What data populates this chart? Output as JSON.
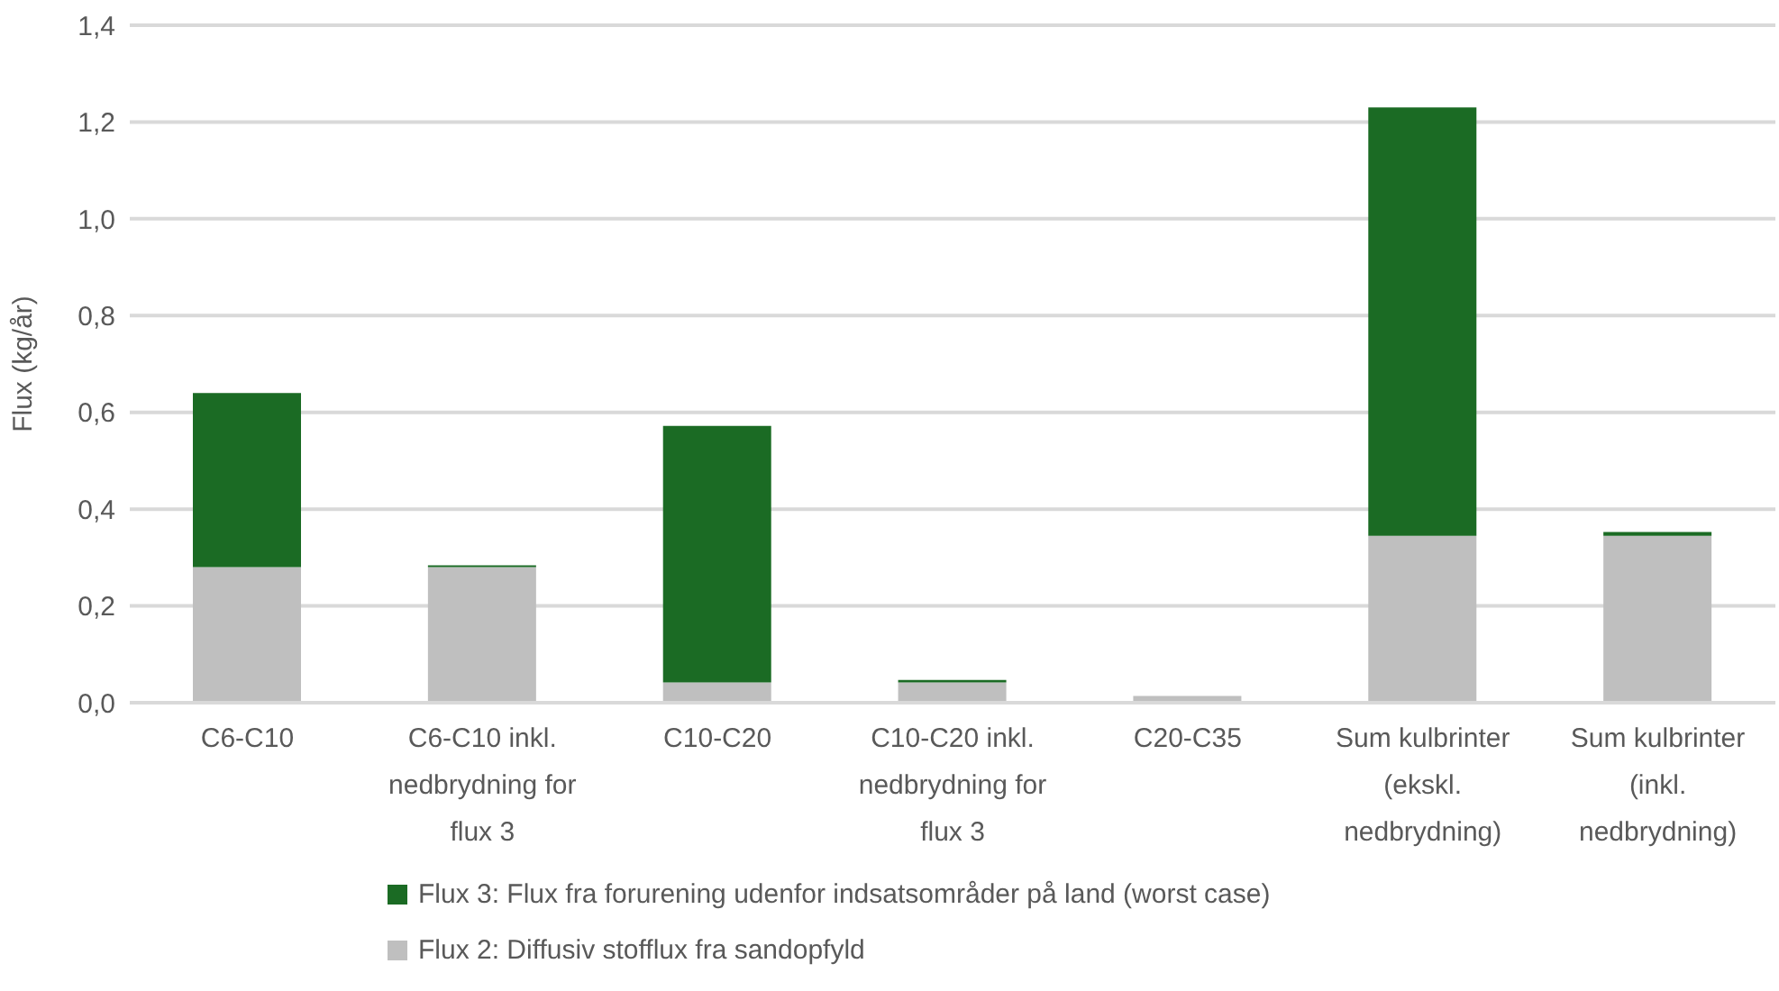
{
  "chart_data": {
    "type": "bar",
    "stacked": true,
    "ylabel": "Flux (kg/år)",
    "categories": [
      "C6-C10",
      "C6-C10 inkl. nedbrydning for flux 3",
      "C10-C20",
      "C10-C20 inkl. nedbrydning for flux 3",
      "C20-C35",
      "Sum kulbrinter (ekskl. nedbrydning)",
      "Sum kulbrinter (inkl. nedbrydning)"
    ],
    "series": [
      {
        "name": "Flux 2: Diffusiv stofflux fra sandopfyld",
        "color": "#bfbfbf",
        "values": [
          0.28,
          0.28,
          0.042,
          0.042,
          0.014,
          0.345,
          0.345
        ]
      },
      {
        "name": "Flux 3: Flux fra forurening udenfor indsatsområder på land (worst case)",
        "color": "#1b6b24",
        "values": [
          0.36,
          0.004,
          0.53,
          0.005,
          0,
          0.885,
          0.008
        ]
      }
    ],
    "ylim": [
      0,
      1.4
    ],
    "yticks": [
      {
        "value": 0,
        "label": "0,0"
      },
      {
        "value": 0.2,
        "label": "0,2"
      },
      {
        "value": 0.4,
        "label": "0,4"
      },
      {
        "value": 0.6,
        "label": "0,6"
      },
      {
        "value": 0.8,
        "label": "0,8"
      },
      {
        "value": 1.0,
        "label": "1,0"
      },
      {
        "value": 1.2,
        "label": "1,2"
      },
      {
        "value": 1.4,
        "label": "1,4"
      }
    ],
    "grid": "y",
    "legend": "bottom"
  }
}
